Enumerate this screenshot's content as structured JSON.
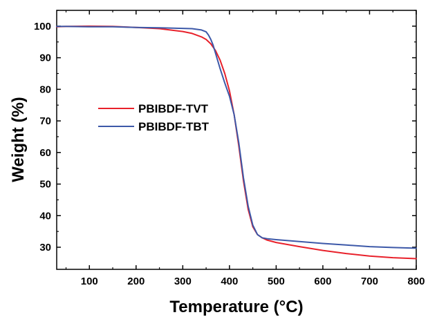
{
  "chart_data": {
    "type": "line",
    "title": "",
    "xlabel": "Temperature (°C)",
    "ylabel": "Weight (%)",
    "xlim": [
      30,
      800
    ],
    "ylim": [
      23,
      105
    ],
    "xticks": [
      100,
      200,
      300,
      400,
      500,
      600,
      700,
      800
    ],
    "yticks": [
      30,
      40,
      50,
      60,
      70,
      80,
      90,
      100
    ],
    "grid": false,
    "legend_position": "center-left",
    "series": [
      {
        "name": "PBIBDF-TVT",
        "color": "#e8202a",
        "x": [
          30,
          50,
          100,
          150,
          200,
          250,
          300,
          320,
          340,
          350,
          360,
          370,
          380,
          390,
          400,
          410,
          420,
          430,
          440,
          450,
          460,
          470,
          480,
          500,
          550,
          600,
          650,
          700,
          750,
          800
        ],
        "y": [
          99.8,
          99.9,
          100.0,
          99.9,
          99.6,
          99.2,
          98.3,
          97.7,
          96.6,
          95.8,
          94.4,
          92.3,
          89.2,
          85.0,
          79.5,
          72.0,
          62.0,
          51.0,
          42.0,
          36.5,
          34.0,
          33.0,
          32.3,
          31.5,
          30.2,
          29.0,
          28.0,
          27.2,
          26.7,
          26.4
        ]
      },
      {
        "name": "PBIBDF-TBT",
        "color": "#3c58a8",
        "x": [
          30,
          50,
          100,
          150,
          200,
          250,
          300,
          320,
          340,
          350,
          355,
          360,
          365,
          370,
          380,
          390,
          400,
          410,
          420,
          430,
          440,
          450,
          460,
          470,
          480,
          500,
          550,
          600,
          650,
          700,
          750,
          800
        ],
        "y": [
          99.9,
          99.9,
          99.8,
          99.8,
          99.6,
          99.5,
          99.3,
          99.2,
          98.8,
          98.2,
          97.2,
          95.8,
          94.0,
          91.5,
          86.5,
          82.0,
          77.8,
          72.0,
          63.0,
          52.0,
          43.0,
          37.0,
          34.0,
          33.0,
          32.7,
          32.4,
          31.8,
          31.2,
          30.7,
          30.2,
          29.9,
          29.7
        ]
      }
    ]
  }
}
